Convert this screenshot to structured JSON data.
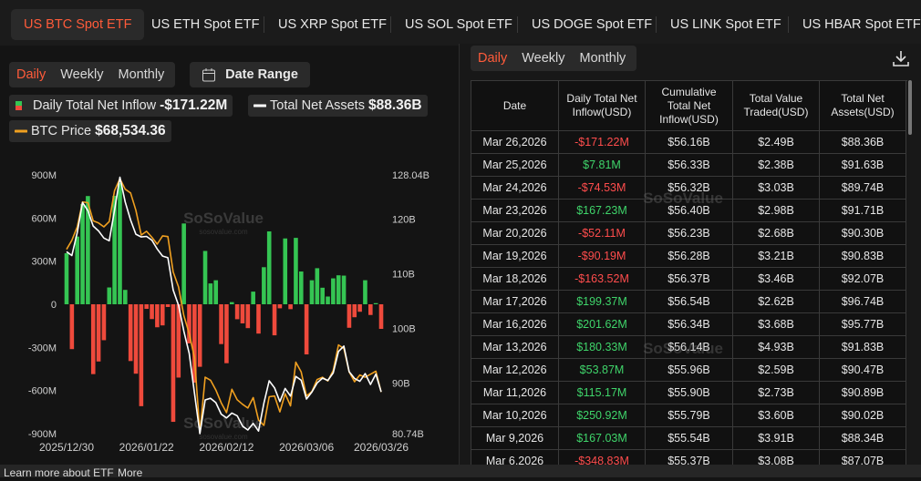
{
  "tabs": [
    "US BTC Spot ETF",
    "US ETH Spot ETF",
    "US XRP Spot ETF",
    "US SOL Spot ETF",
    "US DOGE Spot ETF",
    "US LINK Spot ETF",
    "US HBAR Spot ETF"
  ],
  "chart_controls": {
    "periods": [
      "Daily",
      "Weekly",
      "Monthly"
    ],
    "date_range": "Date Range"
  },
  "watermark": {
    "name": "SoSoValue",
    "url": "sosovalue.com"
  },
  "chart_data": {
    "type": "bar-line",
    "categories": [
      "2025/12/30",
      null,
      null,
      null,
      null,
      null,
      null,
      null,
      null,
      null,
      null,
      null,
      null,
      null,
      null,
      "2026/01/22",
      null,
      null,
      null,
      null,
      null,
      null,
      null,
      null,
      null,
      null,
      null,
      null,
      null,
      null,
      "2026/02/12",
      null,
      null,
      null,
      null,
      null,
      null,
      null,
      null,
      null,
      null,
      null,
      null,
      null,
      null,
      "2026/03/06",
      null,
      null,
      null,
      null,
      null,
      null,
      null,
      null,
      null,
      null,
      null,
      null,
      null,
      "2026/03/26"
    ],
    "ylim": [
      -900,
      900
    ],
    "yticks": [
      {
        "value": 900,
        "label": "900M"
      },
      {
        "value": 600,
        "label": "600M"
      },
      {
        "value": 300,
        "label": "300M"
      },
      0,
      {
        "value": -300,
        "label": "-300M"
      },
      {
        "value": -600,
        "label": "-600M"
      },
      {
        "value": -900,
        "label": "-900M"
      }
    ],
    "y2lim": [
      80.74,
      128.04
    ],
    "y2ticks": [
      {
        "value": 128.04,
        "label": "128.04B"
      },
      {
        "value": 120,
        "label": "120B"
      },
      {
        "value": 110,
        "label": "110B"
      },
      {
        "value": 100,
        "label": "100B"
      },
      {
        "value": 90,
        "label": "90B"
      },
      {
        "value": 80.74,
        "label": "80.74B"
      }
    ],
    "y3lim": [
      63000,
      97400
    ],
    "series": [
      {
        "name": "Daily Total Net Inflow",
        "latest_label": "-$171.22M",
        "color": {
          "positive": "#35c553",
          "negative": "#ef4a3c"
        },
        "values": [
          355,
          -312,
          471,
          697,
          753,
          -486,
          -398,
          -250,
          117,
          754,
          843,
          100,
          -395,
          -483,
          -709,
          -32,
          -103,
          -160,
          -147,
          -19,
          -818,
          -510,
          562,
          -272,
          -545,
          -435,
          371,
          145,
          167,
          -277,
          -410,
          15,
          -104,
          -133,
          -166,
          88,
          -204,
          258,
          507,
          -216,
          -28,
          458,
          -34,
          462,
          228,
          -348.83,
          167.03,
          250.92,
          115.17,
          53.87,
          180.33,
          201.62,
          199.37,
          -163.52,
          -90.19,
          -52.11,
          167.23,
          -74.53,
          7.81,
          -171.22
        ]
      },
      {
        "name": "Total Net Assets",
        "latest_label": "$88.36B",
        "color": "#ffffff",
        "axis": "y2",
        "values": [
          114.0,
          113.3,
          117.5,
          123.0,
          121.5,
          118.7,
          117.8,
          116.5,
          116.0,
          121.6,
          127.6,
          123.1,
          119.8,
          117.2,
          116.7,
          116.8,
          116.1,
          114.5,
          113.2,
          112.9,
          107.0,
          104.2,
          99.5,
          95.4,
          88.1,
          80.74,
          86.9,
          87.2,
          86.4,
          84.3,
          83.6,
          84.5,
          84.0,
          82.1,
          81.4,
          82.6,
          81.2,
          86.3,
          90.4,
          89.1,
          86.6,
          89.0,
          87.6,
          91.2,
          90.5,
          87.07,
          88.34,
          90.02,
          90.89,
          90.47,
          91.83,
          95.77,
          96.74,
          92.07,
          90.83,
          90.3,
          91.71,
          89.74,
          91.63,
          88.36
        ]
      },
      {
        "name": "BTC Price",
        "latest_label": "$68,534.36",
        "color": "#f0a020",
        "axis": "y3",
        "values": [
          87500,
          88700,
          90500,
          93800,
          93700,
          91300,
          91000,
          90500,
          91200,
          95300,
          96900,
          95500,
          95000,
          92700,
          89400,
          89900,
          89100,
          88200,
          89300,
          89200,
          84500,
          82500,
          78700,
          76300,
          73100,
          63100,
          70500,
          70100,
          68800,
          67100,
          65800,
          68900,
          67500,
          66900,
          66400,
          67800,
          64800,
          64100,
          67900,
          68000,
          65900,
          68300,
          66700,
          72500,
          71200,
          68000,
          68600,
          70200,
          70500,
          70000,
          71400,
          74800,
          74300,
          71200,
          69900,
          70800,
          70500,
          70900,
          71300,
          68534.36
        ]
      }
    ]
  },
  "table": {
    "periods": [
      "Daily",
      "Weekly",
      "Monthly"
    ],
    "columns": [
      "Date",
      "Daily Total Net Inflow(USD)",
      "Cumulative Total Net Inflow(USD)",
      "Total Value Traded(USD)",
      "Total Net Assets(USD)"
    ],
    "rows": [
      [
        "Mar 26,2026",
        "-$171.22M",
        "$56.16B",
        "$2.49B",
        "$88.36B"
      ],
      [
        "Mar 25,2026",
        "$7.81M",
        "$56.33B",
        "$2.38B",
        "$91.63B"
      ],
      [
        "Mar 24,2026",
        "-$74.53M",
        "$56.32B",
        "$3.03B",
        "$89.74B"
      ],
      [
        "Mar 23,2026",
        "$167.23M",
        "$56.40B",
        "$2.98B",
        "$91.71B"
      ],
      [
        "Mar 20,2026",
        "-$52.11M",
        "$56.23B",
        "$2.68B",
        "$90.30B"
      ],
      [
        "Mar 19,2026",
        "-$90.19M",
        "$56.28B",
        "$3.21B",
        "$90.83B"
      ],
      [
        "Mar 18,2026",
        "-$163.52M",
        "$56.37B",
        "$3.46B",
        "$92.07B"
      ],
      [
        "Mar 17,2026",
        "$199.37M",
        "$56.54B",
        "$2.62B",
        "$96.74B"
      ],
      [
        "Mar 16,2026",
        "$201.62M",
        "$56.34B",
        "$3.68B",
        "$95.77B"
      ],
      [
        "Mar 13,2026",
        "$180.33M",
        "$56.14B",
        "$4.93B",
        "$91.83B"
      ],
      [
        "Mar 12,2026",
        "$53.87M",
        "$55.96B",
        "$2.59B",
        "$90.47B"
      ],
      [
        "Mar 11,2026",
        "$115.17M",
        "$55.90B",
        "$2.73B",
        "$90.89B"
      ],
      [
        "Mar 10,2026",
        "$250.92M",
        "$55.79B",
        "$3.60B",
        "$90.02B"
      ],
      [
        "Mar 9,2026",
        "$167.03M",
        "$55.54B",
        "$3.91B",
        "$88.34B"
      ],
      [
        "Mar 6,2026",
        "-$348.83M",
        "$55.37B",
        "$3.08B",
        "$87.07B"
      ]
    ]
  },
  "footer": {
    "learn": "Learn more about ETF",
    "more": "More"
  }
}
